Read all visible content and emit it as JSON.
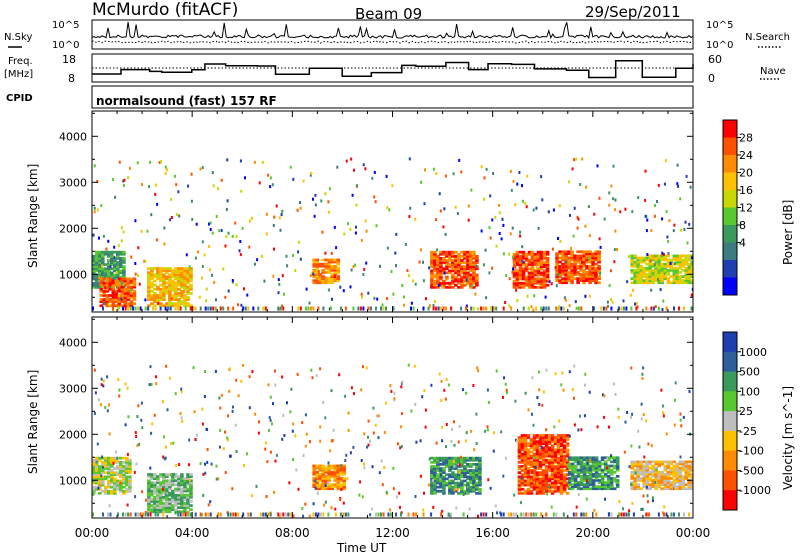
{
  "header": {
    "station": "McMurdo (fitACF)",
    "beam": "Beam 09",
    "date": "29/Sep/2011"
  },
  "strip_labels": {
    "nsky": "N.Sky",
    "nsky_ticks": [
      "10^5",
      "10^0"
    ],
    "freq_line1": "Freq.",
    "freq_line2": "[MHz]",
    "freq_ticks": [
      "18",
      "8"
    ],
    "nsearch": "N.Search",
    "nsearch_ticks": [
      "10^5",
      "10^0"
    ],
    "nave": "Nave",
    "nave_ticks": [
      "60",
      "0"
    ],
    "cpid": "CPID",
    "cpid_value": "normalsound (fast) 157 RF"
  },
  "axes": {
    "ylabel": "Slant Range [km]",
    "yticks": [
      "1000",
      "2000",
      "3000",
      "4000"
    ],
    "xticks": [
      "00:00",
      "04:00",
      "08:00",
      "12:00",
      "16:00",
      "20:00",
      "00:00"
    ],
    "xlabel": "Time UT"
  },
  "chart_data": [
    {
      "type": "heatmap",
      "title": "",
      "ylabel": "Slant Range [km]",
      "xlabel": "Time UT",
      "xlim": [
        "00:00",
        "24:00"
      ],
      "ylim": [
        180,
        4550
      ],
      "colorbar": {
        "label": "Power [dB]",
        "ticks": [
          "28",
          "24",
          "20",
          "16",
          "12",
          "8",
          "4"
        ],
        "colors": [
          "#ff0000",
          "#ff5000",
          "#ff8c00",
          "#ffc000",
          "#c8d800",
          "#58c830",
          "#3a9a5c",
          "#3c7c80",
          "#1f3fb0",
          "#0000ff"
        ]
      },
      "regions": [
        {
          "t0": 0.0,
          "t1": 1.3,
          "r0": 700,
          "r1": 1500,
          "level": 6
        },
        {
          "t0": 0.3,
          "t1": 1.7,
          "r0": 300,
          "r1": 900,
          "level": 1
        },
        {
          "t0": 2.2,
          "t1": 4.0,
          "r0": 300,
          "r1": 1150,
          "level": 3
        },
        {
          "t0": 8.8,
          "t1": 9.8,
          "r0": 800,
          "r1": 1300,
          "level": 2
        },
        {
          "t0": 13.5,
          "t1": 15.3,
          "r0": 700,
          "r1": 1500,
          "level": 1
        },
        {
          "t0": 16.8,
          "t1": 18.2,
          "r0": 700,
          "r1": 1500,
          "level": 1
        },
        {
          "t0": 18.5,
          "t1": 20.2,
          "r0": 800,
          "r1": 1500,
          "level": 1
        },
        {
          "t0": 21.5,
          "t1": 24.0,
          "r0": 800,
          "r1": 1400,
          "level": 4
        }
      ]
    },
    {
      "type": "heatmap",
      "title": "",
      "ylabel": "Slant Range [km]",
      "xlabel": "Time UT",
      "xlim": [
        "00:00",
        "24:00"
      ],
      "ylim": [
        180,
        4550
      ],
      "colorbar": {
        "label": "Velocity [m s^-1]",
        "ticks": [
          "1000",
          "500",
          "100",
          "25",
          "-25",
          "-100",
          "-500",
          "-1000"
        ],
        "colors": [
          "#1f3fb0",
          "#2e5f9a",
          "#3a9a5c",
          "#58c830",
          "#bebebe",
          "#ffc000",
          "#ff8c00",
          "#ff5000",
          "#ff0000"
        ]
      },
      "regions": [
        {
          "t0": 0.0,
          "t1": 1.5,
          "r0": 700,
          "r1": 1500,
          "level": 4
        },
        {
          "t0": 2.2,
          "t1": 4.0,
          "r0": 300,
          "r1": 1150,
          "level": 3
        },
        {
          "t0": 8.8,
          "t1": 10.0,
          "r0": 800,
          "r1": 1300,
          "level": 6
        },
        {
          "t0": 13.5,
          "t1": 15.5,
          "r0": 700,
          "r1": 1500,
          "level": 2
        },
        {
          "t0": 17.0,
          "t1": 19.0,
          "r0": 700,
          "r1": 2000,
          "level": 7
        },
        {
          "t0": 19.0,
          "t1": 21.0,
          "r0": 800,
          "r1": 1500,
          "level": 2
        },
        {
          "t0": 21.5,
          "t1": 24.0,
          "r0": 800,
          "r1": 1400,
          "level": 5
        }
      ]
    }
  ]
}
